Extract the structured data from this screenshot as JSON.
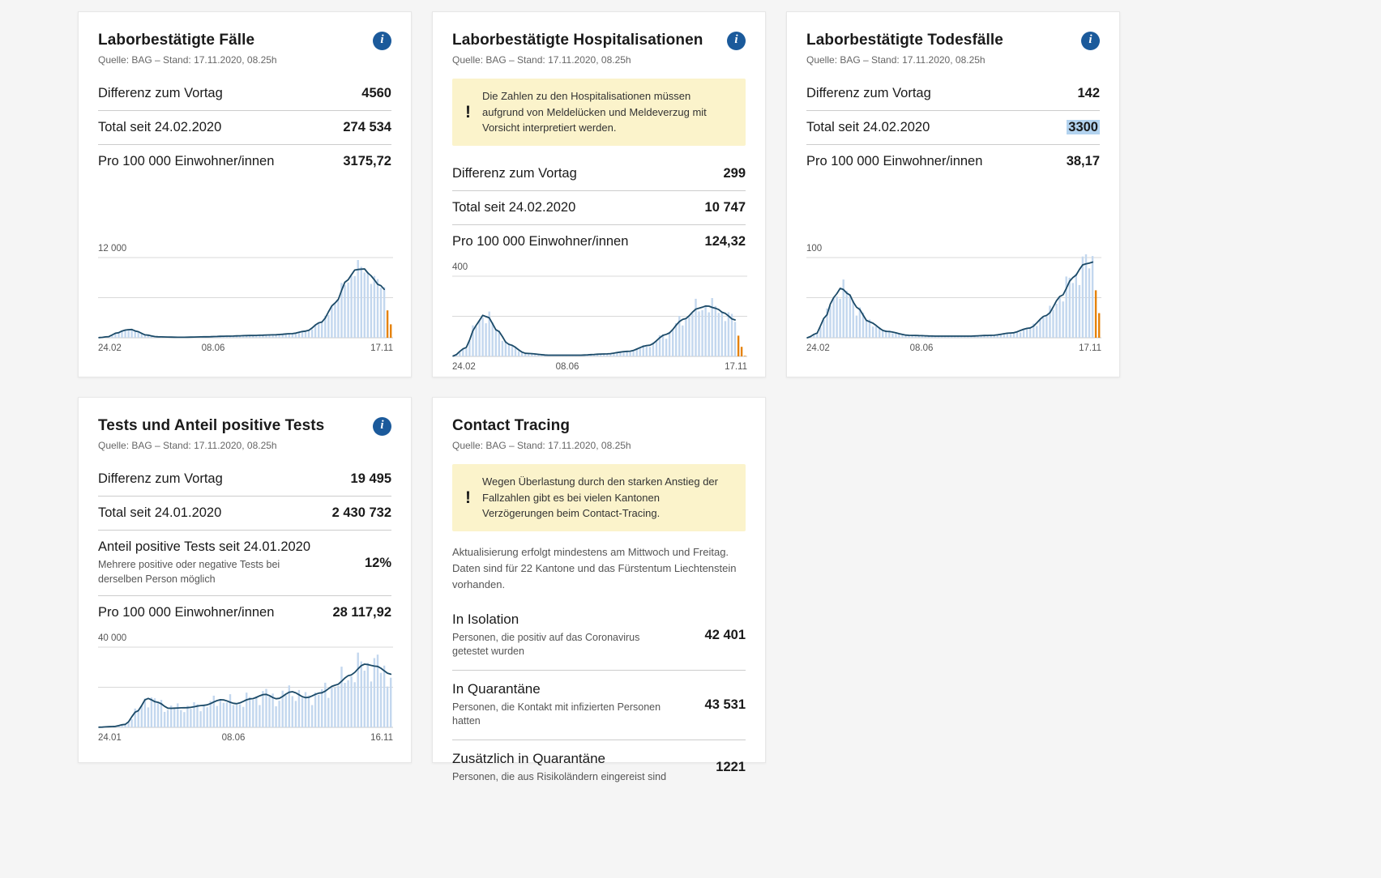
{
  "icons": {
    "info": "i",
    "warning": "!"
  },
  "colors": {
    "bar": "#c3d7ee",
    "line": "#1b4a68",
    "orange": "#e5820a",
    "info_button": "#1b5a9b",
    "warning_bg": "#fbf3cb",
    "selection_highlight": "#b3d3ef"
  },
  "cards": [
    {
      "title": "Laborbestätigte Fälle",
      "source": "Quelle: BAG – Stand: 17.11.2020, 08.25h",
      "rows": [
        {
          "label": "Differenz zum Vortag",
          "value": "4560"
        },
        {
          "label": "Total seit 24.02.2020",
          "value": "274 534"
        },
        {
          "label": "Pro 100 000 Einwohner/innen",
          "value": "3175,72"
        }
      ]
    },
    {
      "title": "Laborbestätigte Hospitalisationen",
      "source": "Quelle: BAG – Stand: 17.11.2020, 08.25h",
      "warning": "Die Zahlen zu den Hospitalisationen müssen aufgrund von Meldelücken und Meldeverzug mit Vorsicht interpretiert werden.",
      "rows": [
        {
          "label": "Differenz zum Vortag",
          "value": "299"
        },
        {
          "label": "Total seit 24.02.2020",
          "value": "10 747"
        },
        {
          "label": "Pro 100 000 Einwohner/innen",
          "value": "124,32"
        }
      ]
    },
    {
      "title": "Laborbestätigte Todesfälle",
      "source": "Quelle: BAG – Stand: 17.11.2020, 08.25h",
      "rows": [
        {
          "label": "Differenz zum Vortag",
          "value": "142"
        },
        {
          "label": "Total seit 24.02.2020",
          "value": "3300",
          "highlighted": true
        },
        {
          "label": "Pro 100 000 Einwohner/innen",
          "value": "38,17"
        }
      ]
    },
    {
      "title": "Tests und Anteil positive Tests",
      "source": "Quelle: BAG – Stand: 17.11.2020, 08.25h",
      "rows": [
        {
          "label": "Differenz zum Vortag",
          "value": "19 495"
        },
        {
          "label": "Total seit 24.01.2020",
          "value": "2 430 732"
        },
        {
          "label": "Anteil positive Tests seit 24.01.2020",
          "note": "Mehrere positive oder negative Tests bei derselben Person möglich",
          "value": "12%"
        },
        {
          "label": "Pro 100 000 Einwohner/innen",
          "value": "28 117,92"
        }
      ]
    },
    {
      "title": "Contact Tracing",
      "source": "Quelle: BAG – Stand: 17.11.2020, 08.25h",
      "warning": "Wegen Überlastung durch den starken Anstieg der Fallzahlen gibt es bei vielen Kantonen Verzögerungen beim Contact-Tracing.",
      "info_text": "Aktualisierung erfolgt mindestens am Mittwoch und Freitag. Daten sind für 22 Kantone und das Fürstentum Liechtenstein vorhanden.",
      "rows": [
        {
          "label": "In Isolation",
          "note": "Personen, die positiv auf das Coronavirus getestet wurden",
          "value": "42 401"
        },
        {
          "label": "In Quarantäne",
          "note": "Personen, die Kontakt mit infizierten Personen hatten",
          "value": "43 531"
        },
        {
          "label": "Zusätzlich in Quarantäne",
          "note": "Personen, die aus Risikoländern eingereist sind",
          "value": "1221"
        }
      ]
    }
  ],
  "chart_data": [
    {
      "type": "bar",
      "title": "Laborbestätigte Fälle pro Tag",
      "ylim": [
        0,
        12000
      ],
      "ymax": 12000,
      "ymax_label": "12 000",
      "grid": true,
      "x_ticks": [
        {
          "label": "24.02",
          "pos": 0
        },
        {
          "label": "08.06",
          "pos": 0.39
        },
        {
          "label": "17.11",
          "pos": 1
        }
      ],
      "bars": 90,
      "noise": 0.16,
      "orange_last": 2,
      "anchors": [
        [
          0,
          20
        ],
        [
          0.03,
          150
        ],
        [
          0.06,
          700
        ],
        [
          0.09,
          1150
        ],
        [
          0.11,
          1250
        ],
        [
          0.13,
          950
        ],
        [
          0.16,
          420
        ],
        [
          0.2,
          140
        ],
        [
          0.28,
          70
        ],
        [
          0.36,
          140
        ],
        [
          0.44,
          240
        ],
        [
          0.52,
          340
        ],
        [
          0.6,
          440
        ],
        [
          0.66,
          620
        ],
        [
          0.71,
          1000
        ],
        [
          0.76,
          2300
        ],
        [
          0.81,
          5200
        ],
        [
          0.85,
          8600
        ],
        [
          0.88,
          10200
        ],
        [
          0.91,
          10300
        ],
        [
          0.93,
          9300
        ],
        [
          0.96,
          7900
        ],
        [
          1,
          6300
        ]
      ]
    },
    {
      "type": "bar",
      "title": "Laborbestätigte Hospitalisationen pro Tag",
      "ylim": [
        0,
        400
      ],
      "ymax": 400,
      "ymax_label": "400",
      "grid": true,
      "x_ticks": [
        {
          "label": "24.02",
          "pos": 0
        },
        {
          "label": "08.06",
          "pos": 0.39
        },
        {
          "label": "17.11",
          "pos": 1
        }
      ],
      "bars": 90,
      "noise": 0.22,
      "orange_last": 3,
      "anchors": [
        [
          0,
          2
        ],
        [
          0.04,
          40
        ],
        [
          0.08,
          155
        ],
        [
          0.1,
          205
        ],
        [
          0.12,
          195
        ],
        [
          0.15,
          130
        ],
        [
          0.19,
          60
        ],
        [
          0.25,
          15
        ],
        [
          0.33,
          6
        ],
        [
          0.43,
          6
        ],
        [
          0.52,
          12
        ],
        [
          0.6,
          25
        ],
        [
          0.67,
          55
        ],
        [
          0.73,
          110
        ],
        [
          0.79,
          185
        ],
        [
          0.84,
          240
        ],
        [
          0.87,
          252
        ],
        [
          0.9,
          240
        ],
        [
          0.93,
          215
        ],
        [
          0.96,
          185
        ],
        [
          1,
          140
        ]
      ]
    },
    {
      "type": "bar",
      "title": "Laborbestätigte Todesfälle pro Tag",
      "ylim": [
        0,
        100
      ],
      "ymax": 100,
      "ymax_label": "100",
      "grid": true,
      "x_ticks": [
        {
          "label": "24.02",
          "pos": 0
        },
        {
          "label": "08.06",
          "pos": 0.39
        },
        {
          "label": "17.11",
          "pos": 1
        }
      ],
      "bars": 90,
      "noise": 0.28,
      "orange_last": 2,
      "anchors": [
        [
          0,
          0
        ],
        [
          0.03,
          5
        ],
        [
          0.06,
          25
        ],
        [
          0.09,
          50
        ],
        [
          0.115,
          62
        ],
        [
          0.14,
          55
        ],
        [
          0.17,
          38
        ],
        [
          0.21,
          20
        ],
        [
          0.27,
          8
        ],
        [
          0.35,
          3
        ],
        [
          0.45,
          2
        ],
        [
          0.55,
          2
        ],
        [
          0.63,
          3
        ],
        [
          0.7,
          6
        ],
        [
          0.76,
          12
        ],
        [
          0.82,
          28
        ],
        [
          0.87,
          52
        ],
        [
          0.91,
          75
        ],
        [
          0.95,
          92
        ],
        [
          1,
          96
        ]
      ]
    },
    {
      "type": "bar",
      "title": "Tests pro Tag",
      "ylim": [
        0,
        40000
      ],
      "ymax": 40000,
      "ymax_label": "40 000",
      "grid": true,
      "x_ticks": [
        {
          "label": "24.01",
          "pos": 0
        },
        {
          "label": "08.06",
          "pos": 0.46
        },
        {
          "label": "16.11",
          "pos": 1
        }
      ],
      "bars": 90,
      "noise": 0.32,
      "orange_last": 0,
      "anchors": [
        [
          0,
          100
        ],
        [
          0.05,
          400
        ],
        [
          0.09,
          1500
        ],
        [
          0.13,
          8000
        ],
        [
          0.165,
          14500
        ],
        [
          0.2,
          12500
        ],
        [
          0.24,
          9500
        ],
        [
          0.3,
          9800
        ],
        [
          0.36,
          11000
        ],
        [
          0.42,
          13800
        ],
        [
          0.47,
          11800
        ],
        [
          0.52,
          14200
        ],
        [
          0.57,
          16500
        ],
        [
          0.61,
          14200
        ],
        [
          0.66,
          17800
        ],
        [
          0.71,
          14800
        ],
        [
          0.76,
          17200
        ],
        [
          0.81,
          21000
        ],
        [
          0.86,
          26000
        ],
        [
          0.91,
          31500
        ],
        [
          0.95,
          30500
        ],
        [
          1,
          26500
        ]
      ]
    }
  ]
}
